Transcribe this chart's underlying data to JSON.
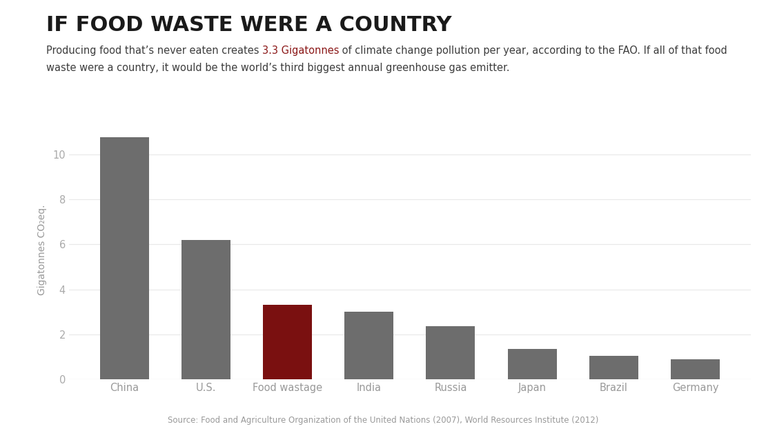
{
  "title": "IF FOOD WASTE WERE A COUNTRY",
  "subtitle_line1_parts": [
    {
      "text": "Producing food that’s never eaten creates ",
      "color": "#3d3d3d",
      "bold": false
    },
    {
      "text": "3.3 Gigatonnes",
      "color": "#8b1818",
      "bold": false
    },
    {
      "text": " of climate change pollution per year, according to the FAO. If all of that food",
      "color": "#3d3d3d",
      "bold": false
    }
  ],
  "subtitle_line2": "waste were a country, it would be the world’s third biggest annual greenhouse gas emitter.",
  "subtitle_line2_color": "#3d3d3d",
  "categories": [
    "China",
    "U.S.",
    "Food wastage",
    "India",
    "Russia",
    "Japan",
    "Brazil",
    "Germany"
  ],
  "values": [
    10.75,
    6.2,
    3.3,
    3.0,
    2.35,
    1.35,
    1.05,
    0.9
  ],
  "bar_colors": [
    "#6d6d6d",
    "#6d6d6d",
    "#7a1010",
    "#6d6d6d",
    "#6d6d6d",
    "#6d6d6d",
    "#6d6d6d",
    "#6d6d6d"
  ],
  "yticks": [
    0,
    2,
    4,
    6,
    8,
    10
  ],
  "ylim": [
    0,
    11.5
  ],
  "source_text": "Source: Food and Agriculture Organization of the United Nations (2007), World Resources Institute (2012)",
  "background_color": "#ffffff",
  "bar_width": 0.6,
  "title_fontsize": 22,
  "subtitle_fontsize": 10.5,
  "ylabel_fontsize": 10,
  "tick_fontsize": 10.5,
  "source_fontsize": 8.5,
  "tick_color": "#aaaaaa",
  "label_color": "#999999",
  "title_color": "#1a1a1a",
  "grid_color": "#e8e8e8"
}
